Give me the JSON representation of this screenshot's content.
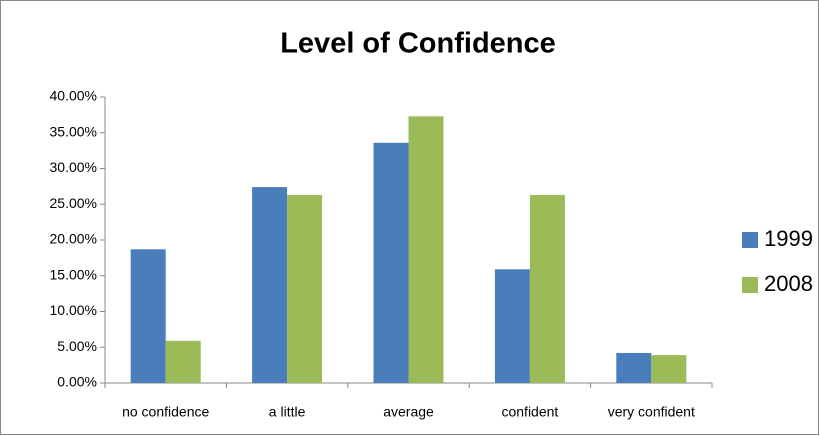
{
  "chart_data": {
    "type": "bar",
    "title": "Level of Confidence",
    "categories": [
      "no confidence",
      "a little",
      "average",
      "confident",
      "very confident"
    ],
    "series": [
      {
        "name": "1999",
        "color": "#4a7ebb",
        "values": [
          18.7,
          27.4,
          33.6,
          15.9,
          4.2
        ]
      },
      {
        "name": "2008",
        "color": "#9bbb59",
        "values": [
          5.9,
          26.3,
          37.3,
          26.3,
          3.9
        ]
      }
    ],
    "ylim": [
      0,
      40
    ],
    "yticks": [
      {
        "value": 0,
        "label": "0.00%"
      },
      {
        "value": 5,
        "label": "5.00%"
      },
      {
        "value": 10,
        "label": "10.00%"
      },
      {
        "value": 15,
        "label": "15.00%"
      },
      {
        "value": 20,
        "label": "20.00%"
      },
      {
        "value": 25,
        "label": "25.00%"
      },
      {
        "value": 30,
        "label": "30.00%"
      },
      {
        "value": 35,
        "label": "35.00%"
      },
      {
        "value": 40,
        "label": "40.00%"
      }
    ],
    "grid": false,
    "legend": "right"
  }
}
